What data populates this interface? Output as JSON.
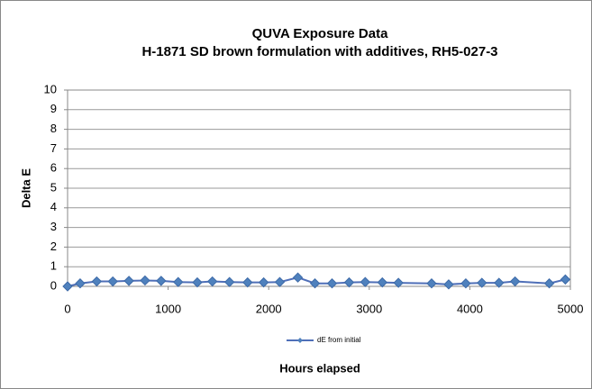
{
  "chart_data": {
    "type": "line",
    "title": "QUVA Exposure Data",
    "subtitle": "H-1871 SD brown formulation with additives, RH5-027-3",
    "x_label": "Hours elapsed",
    "y_label": "Delta E",
    "x": [
      0,
      125,
      290,
      450,
      610,
      770,
      930,
      1100,
      1290,
      1440,
      1610,
      1790,
      1950,
      2110,
      2290,
      2460,
      2630,
      2800,
      2960,
      3130,
      3290,
      3620,
      3790,
      3960,
      4120,
      4290,
      4450,
      4790,
      4950
    ],
    "series": [
      {
        "name": "dE from initial",
        "color": "#4f6fb8",
        "values": [
          0,
          0.15,
          0.25,
          0.25,
          0.28,
          0.3,
          0.28,
          0.22,
          0.2,
          0.25,
          0.22,
          0.2,
          0.2,
          0.22,
          0.45,
          0.15,
          0.15,
          0.2,
          0.22,
          0.2,
          0.18,
          0.15,
          0.1,
          0.15,
          0.18,
          0.18,
          0.25,
          0.15,
          0.35
        ]
      }
    ],
    "xlim": [
      0,
      5000
    ],
    "xticks": [
      0,
      1000,
      2000,
      3000,
      4000,
      5000
    ],
    "ylim": [
      0,
      10
    ],
    "yticks": [
      0,
      1,
      2,
      3,
      4,
      5,
      6,
      7,
      8,
      9,
      10
    ],
    "grid": true
  }
}
